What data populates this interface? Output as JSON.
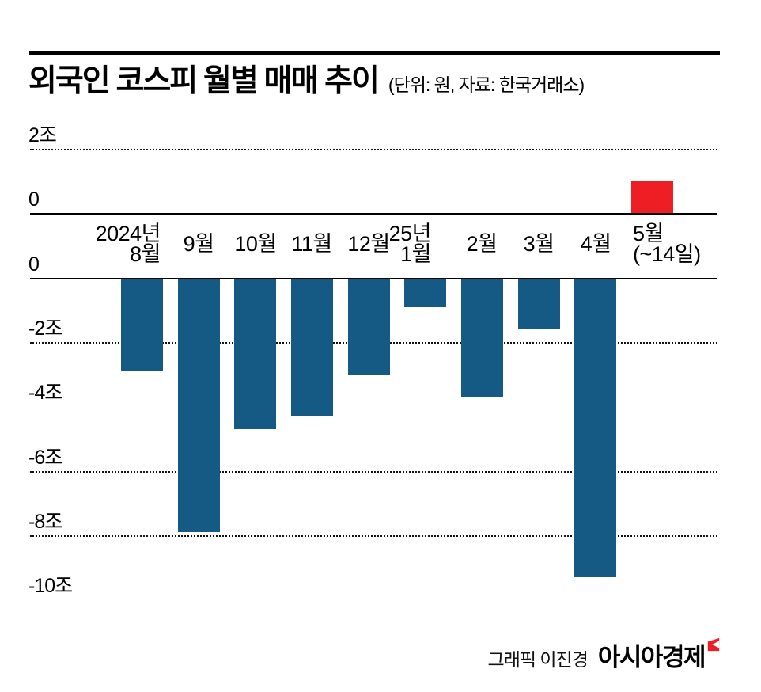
{
  "header": {
    "title": "외국인 코스피 월별 매매 추이",
    "subtitle": "(단위: 원, 자료: 한국거래소)"
  },
  "chart_data": {
    "type": "bar",
    "title": "외국인 코스피 월별 매매 추이",
    "unit_note": "(단위: 원, 자료: 한국거래소)",
    "value_unit": "조 원",
    "categories": [
      "2024년 8월",
      "9월",
      "10월",
      "11월",
      "12월",
      "25년 1월",
      "2월",
      "3월",
      "4월",
      "5월 (~14일)"
    ],
    "values": [
      -2.9,
      -7.9,
      -4.7,
      -4.3,
      -3.0,
      -0.9,
      -3.7,
      -1.6,
      -9.3,
      1.0
    ],
    "ylim": [
      -10.5,
      2.5
    ],
    "colors": {
      "negative": "#155A85",
      "positive": "#ED1F24"
    },
    "grid": "horizontal dotted lines at 2, -2, -6, -8; solid zero lines; axis broken by category label band",
    "legend": "none",
    "y_ticks_top": [
      {
        "label": "2조",
        "value": 2,
        "line": "dotted"
      },
      {
        "label": "0",
        "value": 0,
        "line": "solid"
      }
    ],
    "y_ticks_bottom": [
      {
        "label": "0",
        "value": 0,
        "line": "solid"
      },
      {
        "label": "-2조",
        "value": -2,
        "line": "dotted"
      },
      {
        "label": "-4조",
        "value": -4,
        "line": "none"
      },
      {
        "label": "-6조",
        "value": -6,
        "line": "dotted"
      },
      {
        "label": "-8조",
        "value": -8,
        "line": "dotted"
      },
      {
        "label": "-10조",
        "value": -10,
        "line": "none"
      }
    ],
    "x_labels": [
      {
        "lines": [
          "2024년",
          "8월"
        ],
        "align": "right",
        "dx": -3
      },
      {
        "lines": [
          "9월"
        ],
        "align": "center",
        "dx": 0
      },
      {
        "lines": [
          "10월"
        ],
        "align": "center",
        "dx": 0
      },
      {
        "lines": [
          "11월"
        ],
        "align": "center",
        "dx": 0
      },
      {
        "lines": [
          "12월"
        ],
        "align": "center",
        "dx": 0
      },
      {
        "lines": [
          "25년",
          "1월"
        ],
        "align": "right",
        "dx": -19
      },
      {
        "lines": [
          "2월"
        ],
        "align": "center",
        "dx": 0
      },
      {
        "lines": [
          "3월"
        ],
        "align": "center",
        "dx": 0
      },
      {
        "lines": [
          "4월"
        ],
        "align": "center",
        "dx": 0
      },
      {
        "lines": [
          "5월",
          "(~14일)"
        ],
        "align": "left",
        "dx": 2
      }
    ]
  },
  "footer": {
    "credit": "그래픽 이진경",
    "brand": "아시아경제"
  }
}
